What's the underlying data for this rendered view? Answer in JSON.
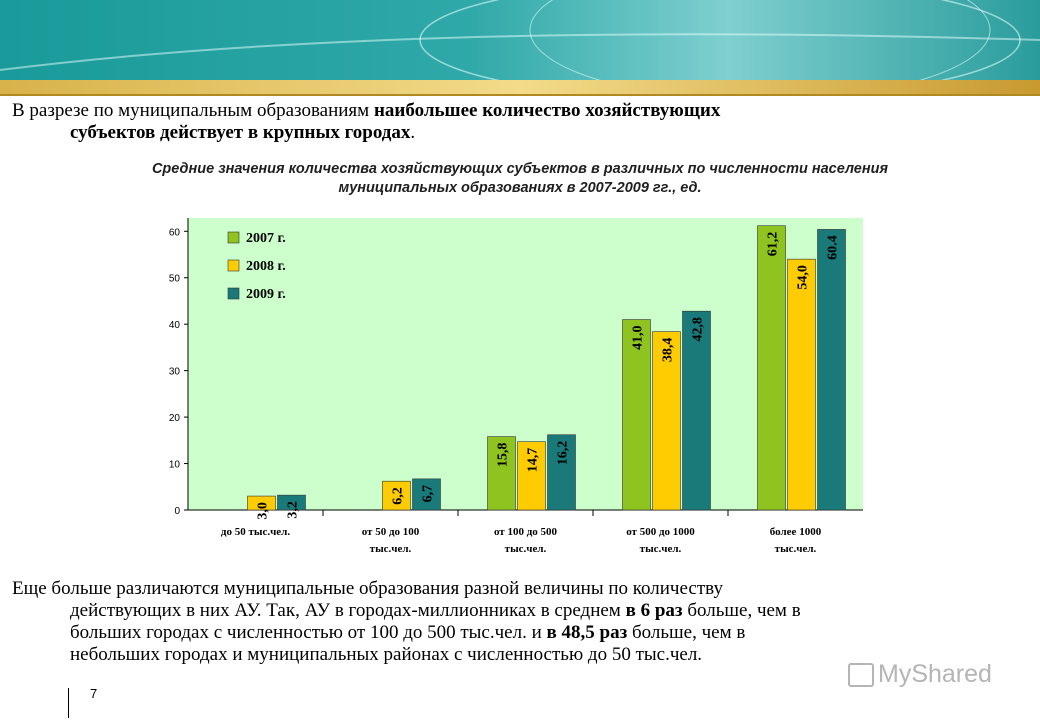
{
  "intro": {
    "line1_pre": "В разрезе по муниципальным образованиям ",
    "line1_bold": "наибольшее количество хозяйствующих",
    "line2_bold": "субъектов действует в крупных городах",
    "line2_post": "."
  },
  "subtitle_line1": "Средние значения количества хозяйствующих субъектов в различных по численности населения",
  "subtitle_line2": "муниципальных образованиях в 2007-2009 гг., ед.",
  "chart_data": {
    "type": "bar",
    "categories": [
      [
        "до 50 тыс.чел.",
        ""
      ],
      [
        "от 50 до 100",
        "тыс.чел."
      ],
      [
        "от 100 до 500",
        "тыс.чел."
      ],
      [
        "от 500 до 1000",
        "тыс.чел."
      ],
      [
        "более 1000",
        "тыс.чел."
      ]
    ],
    "series": [
      {
        "name": "2007 г.",
        "color": "#8fc31f",
        "values": [
          null,
          null,
          15.8,
          41.0,
          61.2
        ],
        "labels": [
          "",
          "",
          "15,8",
          "41,0",
          "61,2"
        ]
      },
      {
        "name": "2008 г.",
        "color": "#fecc00",
        "values": [
          3.0,
          6.2,
          14.7,
          38.4,
          54.0
        ],
        "labels": [
          "3,0",
          "6,2",
          "14,7",
          "38,4",
          "54,0"
        ]
      },
      {
        "name": "2009 г.",
        "color": "#1a7a7a",
        "values": [
          3.2,
          6.7,
          16.2,
          42.8,
          60.4
        ],
        "labels": [
          "3,2",
          "6,7",
          "16,2",
          "42,8",
          "60.4"
        ]
      }
    ],
    "yticks": [
      "0",
      "10",
      "20",
      "30",
      "40",
      "50",
      "60"
    ],
    "ylim": [
      0,
      62
    ],
    "plot_background": "#ccffcc",
    "legend_position": "top-left",
    "grid": false
  },
  "outro": {
    "l1": "Еще больше различаются муниципальные образования разной величины по количеству",
    "l2a": "действующих в них АУ. Так, АУ в городах-миллионниках в среднем ",
    "l2b": "в 6 раз",
    "l2c": " больше, чем в",
    "l3a": "больших городах с численностью от 100 до 500 тыс.чел. и ",
    "l3b": "в 48,5 раз",
    "l3c": " больше, чем в",
    "l4": "небольших городах и муниципальных районах с численностью до 50 тыс.чел."
  },
  "page_number": "7",
  "watermark": "MyShared"
}
